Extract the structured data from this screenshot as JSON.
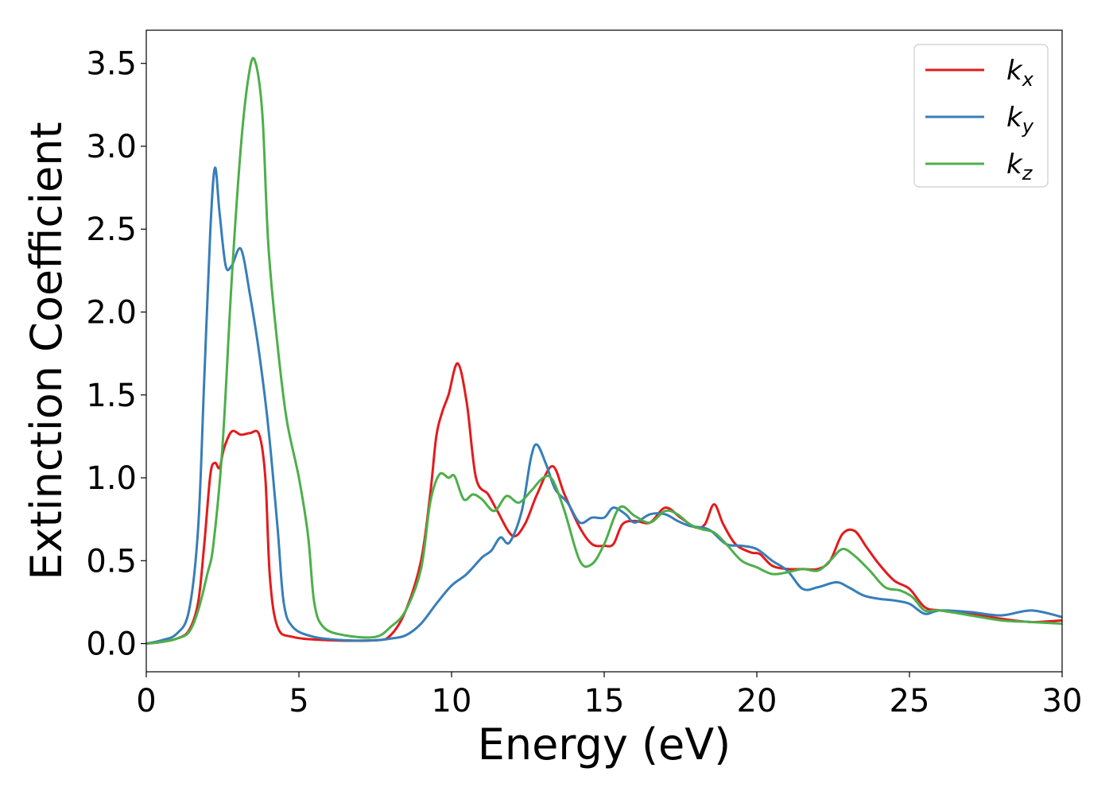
{
  "chart_data": {
    "type": "line",
    "title": "",
    "xlabel": "Energy (eV)",
    "ylabel": "Extinction Coefficient",
    "xlim": [
      0,
      30
    ],
    "ylim": [
      -0.17,
      3.7
    ],
    "xticks": [
      0,
      5,
      10,
      15,
      20,
      25,
      30
    ],
    "xtick_labels": [
      "0",
      "5",
      "10",
      "15",
      "20",
      "25",
      "30"
    ],
    "yticks": [
      0.0,
      0.5,
      1.0,
      1.5,
      2.0,
      2.5,
      3.0,
      3.5
    ],
    "ytick_labels": [
      "0.0",
      "0.5",
      "1.0",
      "1.5",
      "2.0",
      "2.5",
      "3.0",
      "3.5"
    ],
    "grid": false,
    "legend_position": "top-right",
    "series": [
      {
        "name": "k",
        "subscript": "x",
        "color": "#e41a1c",
        "points": [
          [
            0,
            0
          ],
          [
            0.5,
            0.01
          ],
          [
            1.0,
            0.03
          ],
          [
            1.4,
            0.08
          ],
          [
            1.7,
            0.25
          ],
          [
            1.9,
            0.6
          ],
          [
            2.1,
            1.02
          ],
          [
            2.25,
            1.09
          ],
          [
            2.4,
            1.06
          ],
          [
            2.55,
            1.18
          ],
          [
            2.8,
            1.28
          ],
          [
            3.1,
            1.26
          ],
          [
            3.4,
            1.27
          ],
          [
            3.7,
            1.26
          ],
          [
            3.9,
            1.0
          ],
          [
            4.05,
            0.4
          ],
          [
            4.3,
            0.1
          ],
          [
            4.8,
            0.04
          ],
          [
            6,
            0.02
          ],
          [
            7.5,
            0.02
          ],
          [
            8.0,
            0.05
          ],
          [
            8.5,
            0.2
          ],
          [
            9.0,
            0.5
          ],
          [
            9.3,
            0.9
          ],
          [
            9.5,
            1.25
          ],
          [
            9.7,
            1.4
          ],
          [
            9.9,
            1.5
          ],
          [
            10.2,
            1.69
          ],
          [
            10.5,
            1.45
          ],
          [
            10.8,
            1.0
          ],
          [
            11.2,
            0.9
          ],
          [
            11.5,
            0.8
          ],
          [
            12.0,
            0.65
          ],
          [
            12.4,
            0.72
          ],
          [
            12.8,
            0.9
          ],
          [
            13.3,
            1.07
          ],
          [
            13.7,
            0.9
          ],
          [
            14.2,
            0.7
          ],
          [
            14.6,
            0.6
          ],
          [
            15.0,
            0.59
          ],
          [
            15.3,
            0.6
          ],
          [
            15.6,
            0.72
          ],
          [
            16.0,
            0.74
          ],
          [
            16.5,
            0.73
          ],
          [
            17.0,
            0.82
          ],
          [
            17.5,
            0.76
          ],
          [
            18.0,
            0.7
          ],
          [
            18.3,
            0.72
          ],
          [
            18.6,
            0.84
          ],
          [
            18.9,
            0.72
          ],
          [
            19.3,
            0.6
          ],
          [
            19.8,
            0.55
          ],
          [
            20.1,
            0.54
          ],
          [
            20.5,
            0.47
          ],
          [
            21.0,
            0.45
          ],
          [
            21.5,
            0.45
          ],
          [
            22.0,
            0.45
          ],
          [
            22.4,
            0.5
          ],
          [
            22.8,
            0.66
          ],
          [
            23.2,
            0.68
          ],
          [
            23.6,
            0.58
          ],
          [
            24.0,
            0.48
          ],
          [
            24.5,
            0.38
          ],
          [
            25.0,
            0.33
          ],
          [
            25.5,
            0.22
          ],
          [
            26.0,
            0.2
          ],
          [
            27.0,
            0.18
          ],
          [
            28.0,
            0.15
          ],
          [
            29.0,
            0.13
          ],
          [
            30.0,
            0.14
          ]
        ]
      },
      {
        "name": "k",
        "subscript": "y",
        "color": "#377eb8",
        "points": [
          [
            0,
            0
          ],
          [
            0.5,
            0.02
          ],
          [
            1.0,
            0.06
          ],
          [
            1.4,
            0.2
          ],
          [
            1.7,
            0.7
          ],
          [
            1.9,
            1.6
          ],
          [
            2.1,
            2.5
          ],
          [
            2.25,
            2.87
          ],
          [
            2.4,
            2.6
          ],
          [
            2.6,
            2.28
          ],
          [
            2.8,
            2.28
          ],
          [
            3.1,
            2.38
          ],
          [
            3.4,
            2.1
          ],
          [
            3.7,
            1.75
          ],
          [
            4.0,
            1.3
          ],
          [
            4.3,
            0.7
          ],
          [
            4.5,
            0.25
          ],
          [
            4.8,
            0.1
          ],
          [
            5.5,
            0.04
          ],
          [
            6.5,
            0.02
          ],
          [
            7.5,
            0.02
          ],
          [
            8.0,
            0.03
          ],
          [
            8.5,
            0.05
          ],
          [
            9.0,
            0.12
          ],
          [
            9.5,
            0.24
          ],
          [
            10.0,
            0.35
          ],
          [
            10.5,
            0.42
          ],
          [
            11.0,
            0.52
          ],
          [
            11.3,
            0.56
          ],
          [
            11.6,
            0.64
          ],
          [
            11.9,
            0.61
          ],
          [
            12.3,
            0.8
          ],
          [
            12.6,
            1.12
          ],
          [
            12.8,
            1.2
          ],
          [
            13.1,
            1.08
          ],
          [
            13.4,
            0.93
          ],
          [
            13.8,
            0.85
          ],
          [
            14.2,
            0.73
          ],
          [
            14.6,
            0.76
          ],
          [
            15.0,
            0.76
          ],
          [
            15.3,
            0.82
          ],
          [
            15.7,
            0.78
          ],
          [
            16.0,
            0.73
          ],
          [
            16.5,
            0.78
          ],
          [
            17.0,
            0.78
          ],
          [
            17.4,
            0.74
          ],
          [
            17.8,
            0.71
          ],
          [
            18.2,
            0.7
          ],
          [
            18.5,
            0.68
          ],
          [
            19.0,
            0.6
          ],
          [
            19.5,
            0.59
          ],
          [
            20.0,
            0.57
          ],
          [
            20.5,
            0.5
          ],
          [
            21.0,
            0.44
          ],
          [
            21.5,
            0.33
          ],
          [
            22.0,
            0.34
          ],
          [
            22.6,
            0.37
          ],
          [
            23.0,
            0.34
          ],
          [
            23.5,
            0.29
          ],
          [
            24.0,
            0.27
          ],
          [
            24.5,
            0.26
          ],
          [
            25.0,
            0.24
          ],
          [
            25.5,
            0.18
          ],
          [
            26.0,
            0.2
          ],
          [
            27.0,
            0.19
          ],
          [
            28.0,
            0.17
          ],
          [
            29.0,
            0.2
          ],
          [
            30.0,
            0.16
          ]
        ]
      },
      {
        "name": "k",
        "subscript": "z",
        "color": "#4daf4a",
        "points": [
          [
            0,
            0
          ],
          [
            0.5,
            0.01
          ],
          [
            1.0,
            0.03
          ],
          [
            1.4,
            0.07
          ],
          [
            1.7,
            0.2
          ],
          [
            2.0,
            0.42
          ],
          [
            2.2,
            0.6
          ],
          [
            2.5,
            1.2
          ],
          [
            2.8,
            2.2
          ],
          [
            3.1,
            3.0
          ],
          [
            3.35,
            3.42
          ],
          [
            3.55,
            3.52
          ],
          [
            3.8,
            3.2
          ],
          [
            4.0,
            2.4
          ],
          [
            4.3,
            1.8
          ],
          [
            4.6,
            1.35
          ],
          [
            5.0,
            1.0
          ],
          [
            5.3,
            0.65
          ],
          [
            5.5,
            0.25
          ],
          [
            5.8,
            0.1
          ],
          [
            6.5,
            0.05
          ],
          [
            7.5,
            0.04
          ],
          [
            8.0,
            0.1
          ],
          [
            8.5,
            0.2
          ],
          [
            9.0,
            0.45
          ],
          [
            9.3,
            0.85
          ],
          [
            9.6,
            1.02
          ],
          [
            9.9,
            1.0
          ],
          [
            10.1,
            1.01
          ],
          [
            10.4,
            0.87
          ],
          [
            10.7,
            0.9
          ],
          [
            11.0,
            0.87
          ],
          [
            11.4,
            0.8
          ],
          [
            11.8,
            0.89
          ],
          [
            12.2,
            0.85
          ],
          [
            12.6,
            0.92
          ],
          [
            13.0,
            1.0
          ],
          [
            13.3,
            0.99
          ],
          [
            13.7,
            0.8
          ],
          [
            14.2,
            0.5
          ],
          [
            14.6,
            0.48
          ],
          [
            15.0,
            0.6
          ],
          [
            15.5,
            0.82
          ],
          [
            16.0,
            0.77
          ],
          [
            16.5,
            0.73
          ],
          [
            17.0,
            0.8
          ],
          [
            17.4,
            0.78
          ],
          [
            17.8,
            0.72
          ],
          [
            18.2,
            0.69
          ],
          [
            18.6,
            0.67
          ],
          [
            19.0,
            0.6
          ],
          [
            19.5,
            0.5
          ],
          [
            20.0,
            0.46
          ],
          [
            20.5,
            0.42
          ],
          [
            21.0,
            0.43
          ],
          [
            21.5,
            0.45
          ],
          [
            22.0,
            0.44
          ],
          [
            22.4,
            0.5
          ],
          [
            22.8,
            0.57
          ],
          [
            23.2,
            0.53
          ],
          [
            23.7,
            0.44
          ],
          [
            24.2,
            0.34
          ],
          [
            24.7,
            0.32
          ],
          [
            25.1,
            0.28
          ],
          [
            25.5,
            0.2
          ],
          [
            26.0,
            0.2
          ],
          [
            27.0,
            0.17
          ],
          [
            28.0,
            0.14
          ],
          [
            29.0,
            0.13
          ],
          [
            30.0,
            0.12
          ]
        ]
      }
    ]
  }
}
